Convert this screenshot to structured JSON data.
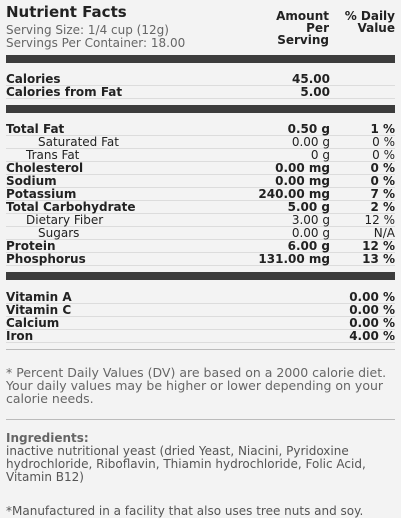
{
  "header": {
    "title": "Nutrient Facts",
    "serving_size": "Serving Size: 1/4 cup (12g)",
    "servings_per_container": "Servings Per Container: 18.00",
    "amount_heading": "Amount Per Serving",
    "dv_heading": "% Daily Value"
  },
  "sections": [
    {
      "rows": [
        {
          "name": "Calories",
          "amount": "45.00"
        },
        {
          "name": "Calories from Fat",
          "amount": "5.00"
        }
      ]
    },
    {
      "rows": [
        {
          "name": "Total Fat",
          "amount": "0.50 g",
          "dv": "1 %"
        },
        {
          "name": "Saturated Fat",
          "amount": "0.00 g",
          "dv": "0 %"
        },
        {
          "name": "Trans Fat",
          "amount": "0 g",
          "dv": "0 %"
        },
        {
          "name": "Cholesterol",
          "amount": "0.00 mg",
          "dv": "0 %"
        },
        {
          "name": "Sodium",
          "amount": "0.00 mg",
          "dv": "0 %"
        },
        {
          "name": "Potassium",
          "amount": "240.00 mg",
          "dv": "7 %"
        },
        {
          "name": "Total Carbohydrate",
          "amount": "5.00 g",
          "dv": "2 %"
        },
        {
          "name": "Dietary Fiber",
          "amount": "3.00 g",
          "dv": "12 %"
        },
        {
          "name": "Sugars",
          "amount": "0.00 g",
          "dv": "N/A"
        },
        {
          "name": "Protein",
          "amount": "6.00 g",
          "dv": "12 %"
        },
        {
          "name": "Phosphorus",
          "amount": "131.00 mg",
          "dv": "13 %"
        }
      ]
    },
    {
      "rows": [
        {
          "name": "Vitamin A",
          "dv": "0.00 %"
        },
        {
          "name": "Vitamin C",
          "dv": "0.00 %"
        },
        {
          "name": "Calcium",
          "dv": "0.00 %"
        },
        {
          "name": "Iron",
          "dv": "4.00 %"
        }
      ]
    }
  ],
  "footnote": "* Percent Daily Values (DV) are based on a 2000 calorie diet. Your daily values may be higher or lower depending on your calorie needs.",
  "ingredients": {
    "label": "Ingredients:",
    "text": "inactive nutritional yeast (dried Yeast, Niacini, Pyridoxine hydrochloride, Riboflavin, Thiamin hydrochloride, Folic Acid, Vitamin B12)"
  },
  "disclaimer": "*Manufactured in a facility that also uses tree nuts and soy."
}
